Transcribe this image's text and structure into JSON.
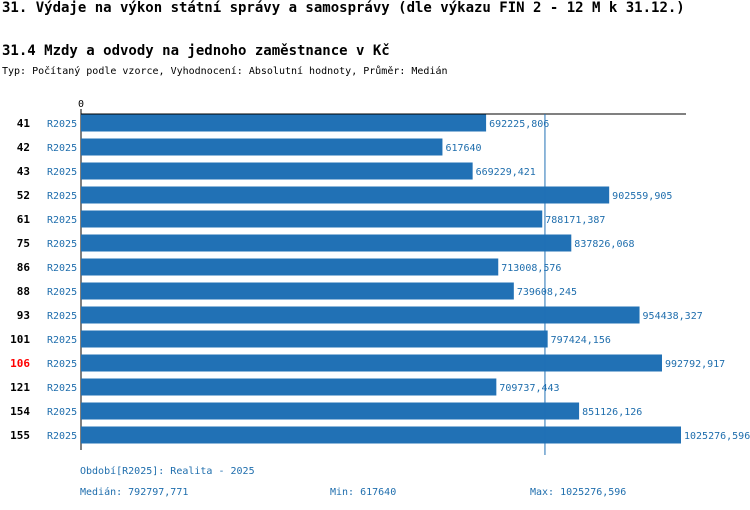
{
  "header": {
    "title": "31. Výdaje na výkon státní správy a samosprávy (dle výkazu FIN 2 - 12 M k 31.12.)",
    "subtitle": "31.4 Mzdy a odvody na jednoho zaměstnance v Kč",
    "type_line": "Typ: Počítaný podle vzorce, Vyhodnocení: Absolutní hodnoty, Průměr: Medián"
  },
  "colors": {
    "bar": "#2171b5",
    "label": "#1f6ead",
    "highlight": "#ff0000",
    "axis": "#000000"
  },
  "chart_data": {
    "type": "bar",
    "orientation": "horizontal",
    "axis_zero_label": "0",
    "categories": [
      "41",
      "42",
      "43",
      "52",
      "61",
      "75",
      "86",
      "88",
      "93",
      "101",
      "106",
      "121",
      "154",
      "155"
    ],
    "series_label": "R2025",
    "values": [
      692225.806,
      617640,
      669229.421,
      902559.905,
      788171.387,
      837826.068,
      713008.576,
      739608.245,
      954438.327,
      797424.156,
      992792.917,
      709737.443,
      851126.126,
      1025276.596
    ],
    "value_labels": [
      "692225,806",
      "617640",
      "669229,421",
      "902559,905",
      "788171,387",
      "837826,068",
      "713008,576",
      "739608,245",
      "954438,327",
      "797424,156",
      "992792,917",
      "709737,443",
      "851126,126",
      "1025276,596"
    ],
    "highlight_category": "106",
    "median": 792797.771,
    "xlim": [
      0,
      1025276.596
    ]
  },
  "footer": {
    "period": "Období[R2025]: Realita - 2025",
    "median": "Medián: 792797,771",
    "min": "Min: 617640",
    "max": "Max: 1025276,596"
  }
}
